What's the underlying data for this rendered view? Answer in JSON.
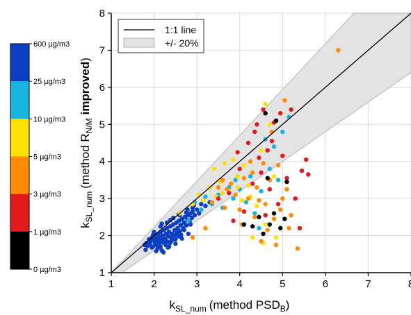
{
  "chart_data": {
    "type": "scatter",
    "title": "",
    "xlabel": {
      "main": "k",
      "sub": "SL_num",
      "paren": "(method PSD",
      "paren_sub": "B",
      "paren_end": ")"
    },
    "ylabel": {
      "main": "k",
      "sub": "SL_num",
      "paren": "(method R",
      "paren_sub": "N/M",
      "bold": "improved",
      "paren_end": ")"
    },
    "xlim": [
      1,
      8
    ],
    "ylim": [
      1,
      8
    ],
    "xticks": [
      "1",
      "2",
      "3",
      "4",
      "5",
      "6",
      "7",
      "8"
    ],
    "yticks": [
      "1",
      "2",
      "3",
      "4",
      "5",
      "6",
      "7",
      "8"
    ],
    "grid": true,
    "legend": {
      "position": "top-left",
      "items": [
        {
          "label": "1:1 line",
          "kind": "line"
        },
        {
          "label": "+/- 20%",
          "kind": "band"
        }
      ]
    },
    "reference_line": {
      "slope": 1,
      "band_fraction": 0.2
    },
    "colorbar": {
      "position": "left",
      "labels": [
        "600 µg/m3",
        "25 µg/m3",
        "10 µg/m3",
        "5 µg/m3",
        "3 µg/m3",
        "1 µg/m3",
        "0 µg/m3"
      ],
      "colors": [
        "#0b3fc4",
        "#18b4e0",
        "#ffe100",
        "#ff8c00",
        "#e31a1c",
        "#000000"
      ]
    },
    "series": [
      {
        "color": "#0b3fc4",
        "points": [
          [
            1.78,
            1.75
          ],
          [
            1.82,
            1.8
          ],
          [
            1.85,
            1.72
          ],
          [
            1.88,
            1.9
          ],
          [
            1.9,
            1.78
          ],
          [
            1.92,
            1.85
          ],
          [
            1.95,
            1.95
          ],
          [
            1.97,
            1.7
          ],
          [
            2.0,
            1.88
          ],
          [
            2.02,
            1.8
          ],
          [
            2.03,
            2.0
          ],
          [
            2.05,
            1.75
          ],
          [
            2.07,
            1.92
          ],
          [
            2.08,
            1.65
          ],
          [
            2.1,
            1.85
          ],
          [
            2.1,
            2.05
          ],
          [
            2.12,
            1.78
          ],
          [
            2.13,
            1.95
          ],
          [
            2.15,
            1.7
          ],
          [
            2.15,
            2.1
          ],
          [
            2.17,
            1.88
          ],
          [
            2.18,
            1.6
          ],
          [
            2.2,
            2.0
          ],
          [
            2.2,
            1.82
          ],
          [
            2.22,
            1.55
          ],
          [
            2.23,
            2.15
          ],
          [
            2.25,
            1.92
          ],
          [
            2.27,
            1.75
          ],
          [
            2.28,
            2.05
          ],
          [
            2.3,
            1.85
          ],
          [
            2.3,
            2.2
          ],
          [
            2.32,
            1.68
          ],
          [
            2.33,
            1.98
          ],
          [
            2.35,
            2.1
          ],
          [
            2.37,
            1.8
          ],
          [
            2.38,
            2.25
          ],
          [
            2.4,
            1.95
          ],
          [
            2.42,
            2.05
          ],
          [
            2.43,
            1.88
          ],
          [
            2.45,
            2.3
          ],
          [
            2.47,
            2.0
          ],
          [
            2.48,
            2.15
          ],
          [
            2.5,
            1.9
          ],
          [
            2.52,
            2.35
          ],
          [
            2.53,
            2.08
          ],
          [
            2.55,
            2.2
          ],
          [
            2.57,
            1.98
          ],
          [
            2.58,
            2.4
          ],
          [
            2.6,
            2.12
          ],
          [
            2.62,
            2.28
          ],
          [
            2.63,
            2.02
          ],
          [
            2.65,
            2.45
          ],
          [
            2.68,
            2.2
          ],
          [
            2.7,
            2.35
          ],
          [
            2.72,
            2.5
          ],
          [
            2.75,
            2.28
          ],
          [
            2.78,
            2.42
          ],
          [
            2.8,
            2.55
          ],
          [
            2.83,
            2.38
          ],
          [
            2.85,
            2.6
          ],
          [
            2.88,
            2.48
          ],
          [
            2.9,
            2.65
          ],
          [
            2.95,
            2.55
          ],
          [
            3.0,
            2.7
          ],
          [
            3.05,
            2.6
          ],
          [
            1.8,
            1.62
          ],
          [
            1.95,
            1.68
          ],
          [
            2.1,
            1.72
          ],
          [
            2.25,
            1.8
          ],
          [
            2.4,
            1.85
          ],
          [
            2.55,
            2.05
          ],
          [
            2.7,
            2.15
          ],
          [
            2.85,
            2.3
          ],
          [
            2.0,
            2.1
          ],
          [
            2.15,
            2.25
          ],
          [
            2.3,
            2.35
          ],
          [
            2.45,
            2.48
          ],
          [
            2.6,
            2.55
          ],
          [
            2.75,
            2.62
          ],
          [
            2.9,
            2.75
          ],
          [
            3.1,
            2.85
          ],
          [
            3.2,
            2.8
          ],
          [
            2.05,
            1.58
          ],
          [
            2.35,
            1.7
          ],
          [
            2.5,
            1.78
          ],
          [
            2.65,
            1.92
          ],
          [
            2.8,
            2.05
          ],
          [
            1.98,
            2.02
          ],
          [
            2.18,
            2.32
          ],
          [
            2.38,
            2.42
          ],
          [
            2.58,
            2.58
          ],
          [
            2.78,
            2.7
          ],
          [
            2.93,
            2.82
          ],
          [
            3.15,
            2.95
          ],
          [
            3.3,
            2.9
          ]
        ]
      },
      {
        "color": "#18b4e0",
        "points": [
          [
            2.8,
            2.4
          ],
          [
            2.95,
            2.9
          ],
          [
            3.1,
            2.7
          ],
          [
            3.2,
            3.05
          ],
          [
            3.35,
            2.85
          ],
          [
            3.5,
            3.1
          ],
          [
            3.6,
            2.75
          ],
          [
            3.75,
            3.3
          ],
          [
            3.85,
            3.0
          ],
          [
            3.9,
            3.5
          ],
          [
            4.0,
            3.25
          ],
          [
            4.15,
            2.9
          ],
          [
            4.25,
            3.6
          ],
          [
            4.35,
            2.6
          ],
          [
            4.45,
            2.2
          ],
          [
            4.5,
            3.2
          ],
          [
            4.6,
            4.6
          ],
          [
            4.7,
            3.8
          ],
          [
            4.8,
            4.4
          ],
          [
            5.0,
            4.8
          ],
          [
            5.15,
            5.2
          ],
          [
            4.9,
            3.5
          ]
        ]
      },
      {
        "color": "#ffe100",
        "points": [
          [
            2.6,
            2.6
          ],
          [
            2.9,
            2.85
          ],
          [
            3.05,
            3.1
          ],
          [
            3.15,
            2.95
          ],
          [
            3.3,
            3.3
          ],
          [
            3.45,
            3.05
          ],
          [
            3.55,
            3.45
          ],
          [
            3.65,
            3.95
          ],
          [
            3.75,
            3.2
          ],
          [
            3.85,
            4.05
          ],
          [
            3.95,
            3.6
          ],
          [
            4.05,
            2.95
          ],
          [
            4.1,
            3.9
          ],
          [
            4.2,
            3.35
          ],
          [
            4.3,
            1.95
          ],
          [
            4.4,
            2.8
          ],
          [
            4.5,
            4.3
          ],
          [
            4.55,
            1.8
          ],
          [
            4.6,
            2.3
          ],
          [
            4.7,
            5.0
          ],
          [
            4.8,
            3.6
          ],
          [
            4.85,
            1.95
          ],
          [
            4.95,
            5.3
          ],
          [
            4.6,
            5.55
          ],
          [
            3.4,
            3.8
          ],
          [
            3.6,
            3.15
          ],
          [
            3.95,
            3.3
          ],
          [
            4.25,
            3.05
          ]
        ]
      },
      {
        "color": "#ff8c00",
        "points": [
          [
            2.9,
            1.95
          ],
          [
            3.2,
            2.2
          ],
          [
            3.35,
            2.9
          ],
          [
            3.5,
            3.3
          ],
          [
            3.6,
            3.5
          ],
          [
            3.7,
            3.25
          ],
          [
            3.8,
            3.4
          ],
          [
            3.9,
            3.1
          ],
          [
            4.0,
            2.7
          ],
          [
            4.05,
            2.3
          ],
          [
            4.1,
            3.55
          ],
          [
            4.2,
            3.0
          ],
          [
            4.3,
            3.7
          ],
          [
            4.35,
            2.5
          ],
          [
            4.4,
            3.3
          ],
          [
            4.5,
            1.85
          ],
          [
            4.55,
            3.95
          ],
          [
            4.6,
            2.85
          ],
          [
            4.65,
            2.15
          ],
          [
            4.7,
            3.5
          ],
          [
            4.75,
            4.8
          ],
          [
            4.8,
            2.45
          ],
          [
            4.85,
            1.75
          ],
          [
            4.9,
            3.9
          ],
          [
            4.95,
            2.7
          ],
          [
            5.0,
            3.0
          ],
          [
            5.05,
            5.65
          ],
          [
            5.1,
            3.25
          ],
          [
            5.15,
            2.2
          ],
          [
            5.2,
            2.55
          ],
          [
            5.35,
            1.65
          ],
          [
            6.3,
            7.0
          ],
          [
            3.65,
            2.75
          ],
          [
            4.45,
            2.95
          ],
          [
            4.25,
            4.0
          ]
        ]
      },
      {
        "color": "#e31a1c",
        "points": [
          [
            3.5,
            3.0
          ],
          [
            3.75,
            3.15
          ],
          [
            3.85,
            2.4
          ],
          [
            4.0,
            3.8
          ],
          [
            4.1,
            2.65
          ],
          [
            4.2,
            4.5
          ],
          [
            4.3,
            3.4
          ],
          [
            4.4,
            5.0
          ],
          [
            4.45,
            4.1
          ],
          [
            4.5,
            3.7
          ],
          [
            4.55,
            5.4
          ],
          [
            4.6,
            2.55
          ],
          [
            4.7,
            3.25
          ],
          [
            4.75,
            4.55
          ],
          [
            4.8,
            5.05
          ],
          [
            4.9,
            2.85
          ],
          [
            5.0,
            4.15
          ],
          [
            5.1,
            3.55
          ],
          [
            5.2,
            5.4
          ],
          [
            5.3,
            3.0
          ],
          [
            5.4,
            2.2
          ],
          [
            5.45,
            3.75
          ],
          [
            5.55,
            4.05
          ],
          [
            5.6,
            3.65
          ],
          [
            4.35,
            4.8
          ],
          [
            4.65,
            4.3
          ],
          [
            4.95,
            5.3
          ],
          [
            3.95,
            4.25
          ]
        ]
      },
      {
        "color": "#000000",
        "points": [
          [
            4.1,
            2.3
          ],
          [
            4.3,
            2.25
          ],
          [
            4.45,
            2.5
          ],
          [
            4.55,
            2.05
          ],
          [
            4.6,
            5.3
          ],
          [
            4.7,
            2.3
          ],
          [
            4.8,
            2.6
          ],
          [
            4.85,
            5.1
          ],
          [
            4.95,
            2.2
          ],
          [
            5.05,
            2.45
          ],
          [
            5.1,
            3.45
          ],
          [
            4.65,
            3.55
          ]
        ]
      }
    ]
  }
}
